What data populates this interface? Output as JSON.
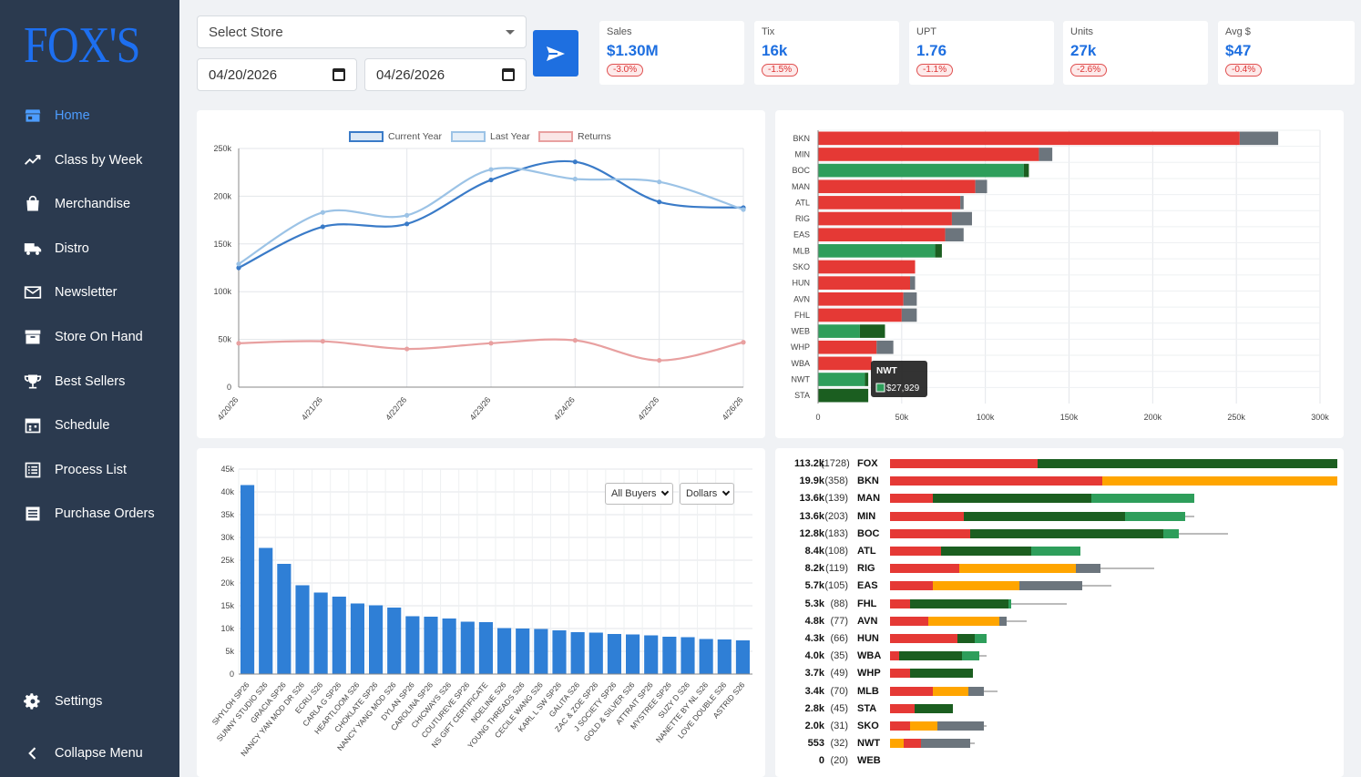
{
  "app": {
    "logo": "FOX'S"
  },
  "sidebar": {
    "items": [
      {
        "label": "Home",
        "icon": "store-icon",
        "active": true
      },
      {
        "label": "Class by Week",
        "icon": "trend-up-icon"
      },
      {
        "label": "Merchandise",
        "icon": "shopping-bag-icon"
      },
      {
        "label": "Distro",
        "icon": "truck-icon"
      },
      {
        "label": "Newsletter",
        "icon": "envelope-icon"
      },
      {
        "label": "Store On Hand",
        "icon": "archive-box-icon"
      },
      {
        "label": "Best Sellers",
        "icon": "trophy-icon"
      },
      {
        "label": "Schedule",
        "icon": "calendar-icon"
      },
      {
        "label": "Process List",
        "icon": "list-icon"
      },
      {
        "label": "Purchase Orders",
        "icon": "receipt-icon"
      }
    ],
    "settings_label": "Settings",
    "collapse_label": "Collapse Menu"
  },
  "filters": {
    "store_placeholder": "Select Store",
    "start_date": "04/20/2026",
    "end_date": "04/26/2026"
  },
  "kpis": [
    {
      "label": "Sales",
      "value": "$1.30M",
      "change": "-3.0%"
    },
    {
      "label": "Tix",
      "value": "16k",
      "change": "-1.5%"
    },
    {
      "label": "UPT",
      "value": "1.76",
      "change": "-1.1%"
    },
    {
      "label": "Units",
      "value": "27k",
      "change": "-2.6%"
    },
    {
      "label": "Avg $",
      "value": "$47",
      "change": "-0.4%"
    }
  ],
  "colors": {
    "accent": "#1e6fe0",
    "red": "#e53935",
    "green": "#2e9e5b",
    "dark_green": "#1b5e20",
    "gray": "#6c757d",
    "orange": "#ffa500"
  },
  "chart_data": [
    {
      "type": "line",
      "x": [
        "4/20/26",
        "4/21/26",
        "4/22/26",
        "4/23/26",
        "4/24/26",
        "4/25/26",
        "4/26/26"
      ],
      "series": [
        {
          "name": "Current Year",
          "values": [
            125000,
            168000,
            171000,
            217000,
            236000,
            194000,
            188000
          ],
          "color": "#3a7bc8"
        },
        {
          "name": "Last Year",
          "values": [
            129000,
            183000,
            180000,
            228000,
            218000,
            215000,
            186000
          ],
          "color": "#9cc3e6"
        },
        {
          "name": "Returns",
          "values": [
            46000,
            48000,
            40000,
            46000,
            49000,
            28000,
            47000
          ],
          "color": "#e8a0a0"
        }
      ],
      "ylim": [
        0,
        250000
      ],
      "yticks": [
        "0",
        "50k",
        "100k",
        "150k",
        "200k",
        "250k"
      ],
      "grid": true,
      "legend": "top"
    },
    {
      "type": "bar",
      "orientation": "horizontal",
      "categories": [
        "BKN",
        "MIN",
        "BOC",
        "MAN",
        "ATL",
        "RIG",
        "EAS",
        "MLB",
        "SKO",
        "HUN",
        "AVN",
        "FHL",
        "WEB",
        "WHP",
        "WBA",
        "NWT",
        "STA"
      ],
      "main": [
        252000,
        132000,
        123000,
        94000,
        85000,
        80000,
        76000,
        70000,
        58000,
        55000,
        51000,
        50000,
        25000,
        35000,
        32000,
        28000,
        30000
      ],
      "main_color": [
        "red",
        "red",
        "green",
        "red",
        "red",
        "red",
        "red",
        "green",
        "red",
        "red",
        "red",
        "red",
        "green",
        "red",
        "red",
        "green",
        "dark_green"
      ],
      "extra": [
        23000,
        8000,
        3000,
        7000,
        2000,
        12000,
        11000,
        4000,
        0,
        3000,
        8000,
        9000,
        15000,
        10000,
        0,
        2000,
        0
      ],
      "extra_color": [
        "gray",
        "gray",
        "dark_green",
        "gray",
        "gray",
        "gray",
        "gray",
        "dark_green",
        "gray",
        "gray",
        "gray",
        "gray",
        "dark_green",
        "gray",
        "gray",
        "dark_green",
        "gray"
      ],
      "xlim": [
        0,
        300000
      ],
      "xticks": [
        "0",
        "50k",
        "100k",
        "150k",
        "200k",
        "250k",
        "300k"
      ],
      "tooltip": {
        "label": "NWT",
        "value": "$27,929"
      }
    },
    {
      "type": "bar",
      "categories": [
        "SHYLOH SP26",
        "SUNNY STUDIO S26",
        "GRACIA SP26",
        "NANCY YAN MOD DR S26",
        "ECRU S26",
        "CARLA G SP26",
        "HEARTLOOM S26",
        "CHOKLATE SP26",
        "NANCY YANG MOD S26",
        "DYLAN SP26",
        "CAROLINA SP26",
        "CHICWAYS S26",
        "COUTUREVE SP26",
        "NS GIFT CERTIFICATE",
        "NOELINE S26",
        "YOUNG THREADS S26",
        "CECILE WANG S26",
        "KARL L SW SP26",
        "GALITA S26",
        "ZAC & ZOE SP26",
        "J SOCIETY SP26",
        "GOLD & SILVER S26",
        "ATTRAIT SP26",
        "MYSTREE SP26",
        "SUZY D S26",
        "NANETTE BY NL S26",
        "LOVE DOUBLE S26",
        "ASTRID S26"
      ],
      "values": [
        41500,
        27700,
        24200,
        19500,
        17900,
        17000,
        15500,
        15100,
        14600,
        12700,
        12600,
        12200,
        11500,
        11400,
        10100,
        10000,
        9900,
        9600,
        9200,
        9100,
        8800,
        8700,
        8500,
        8200,
        8100,
        7700,
        7600,
        7400
      ],
      "ylim": [
        0,
        45000
      ],
      "yticks": [
        "0",
        "5k",
        "10k",
        "15k",
        "20k",
        "25k",
        "30k",
        "35k",
        "40k",
        "45k"
      ],
      "controls": {
        "buyer": "All Buyers",
        "metric": "Dollars"
      }
    },
    {
      "type": "bar",
      "orientation": "horizontal-stacked",
      "rows": [
        {
          "value": "113.2k",
          "count": "(1728)",
          "store": "FOX",
          "segs": [
            [
              "red",
              33
            ],
            [
              "dark_green",
              67
            ]
          ],
          "tail": 0
        },
        {
          "value": "19.9k",
          "count": "(358)",
          "store": "BKN",
          "segs": [
            [
              "red",
              47.5
            ],
            [
              "orange",
              52.5
            ]
          ],
          "tail": 0
        },
        {
          "value": "13.6k",
          "count": "(139)",
          "store": "MAN",
          "segs": [
            [
              "red",
              9.5
            ],
            [
              "dark_green",
              35.5
            ],
            [
              "green",
              23
            ]
          ],
          "tail": 0
        },
        {
          "value": "13.6k",
          "count": "(203)",
          "store": "MIN",
          "segs": [
            [
              "red",
              16.5
            ],
            [
              "dark_green",
              36
            ],
            [
              "green",
              13.5
            ]
          ],
          "tail": 2
        },
        {
          "value": "12.8k",
          "count": "(183)",
          "store": "BOC",
          "segs": [
            [
              "red",
              18
            ],
            [
              "dark_green",
              43
            ],
            [
              "green",
              3.5
            ]
          ],
          "tail": 11
        },
        {
          "value": "8.4k",
          "count": "(108)",
          "store": "ATL",
          "segs": [
            [
              "red",
              11.5
            ],
            [
              "dark_green",
              20
            ],
            [
              "green",
              11
            ]
          ],
          "tail": 0
        },
        {
          "value": "8.2k",
          "count": "(119)",
          "store": "RIG",
          "segs": [
            [
              "red",
              15.5
            ],
            [
              "orange",
              26
            ],
            [
              "gray",
              5.5
            ]
          ],
          "tail": 12
        },
        {
          "value": "5.7k",
          "count": "(105)",
          "store": "EAS",
          "segs": [
            [
              "red",
              9.5
            ],
            [
              "orange",
              19.5
            ],
            [
              "gray",
              14
            ]
          ],
          "tail": 6.5
        },
        {
          "value": "5.3k",
          "count": "(88)",
          "store": "FHL",
          "segs": [
            [
              "red",
              4.5
            ],
            [
              "dark_green",
              22
            ],
            [
              "green",
              0.5
            ]
          ],
          "tail": 12.5
        },
        {
          "value": "4.8k",
          "count": "(77)",
          "store": "AVN",
          "segs": [
            [
              "red",
              8.5
            ],
            [
              "orange",
              16
            ],
            [
              "gray",
              1.5
            ]
          ],
          "tail": 4.5
        },
        {
          "value": "4.3k",
          "count": "(66)",
          "store": "HUN",
          "segs": [
            [
              "red",
              15
            ],
            [
              "dark_green",
              4
            ],
            [
              "green",
              2.5
            ]
          ],
          "tail": 0
        },
        {
          "value": "4.0k",
          "count": "(35)",
          "store": "WBA",
          "segs": [
            [
              "red",
              2
            ],
            [
              "dark_green",
              14
            ],
            [
              "green",
              4
            ]
          ],
          "tail": 1.5
        },
        {
          "value": "3.7k",
          "count": "(49)",
          "store": "WHP",
          "segs": [
            [
              "red",
              4.5
            ],
            [
              "dark_green",
              14
            ]
          ],
          "tail": 0
        },
        {
          "value": "3.4k",
          "count": "(70)",
          "store": "MLB",
          "segs": [
            [
              "red",
              9.5
            ],
            [
              "orange",
              8
            ],
            [
              "gray",
              3.5
            ]
          ],
          "tail": 3
        },
        {
          "value": "2.8k",
          "count": "(45)",
          "store": "STA",
          "segs": [
            [
              "red",
              5.5
            ],
            [
              "dark_green",
              8.5
            ]
          ],
          "tail": 0
        },
        {
          "value": "2.0k",
          "count": "(31)",
          "store": "SKO",
          "segs": [
            [
              "red",
              4.5
            ],
            [
              "orange",
              6
            ],
            [
              "gray",
              10.5
            ]
          ],
          "tail": 0.5
        },
        {
          "value": "553",
          "count": "(32)",
          "store": "NWT",
          "segs": [
            [
              "orange",
              3
            ],
            [
              "red",
              4
            ],
            [
              "gray",
              11
            ]
          ],
          "tail": 1
        },
        {
          "value": "0",
          "count": "(20)",
          "store": "WEB",
          "segs": [],
          "tail": 0
        }
      ]
    }
  ]
}
